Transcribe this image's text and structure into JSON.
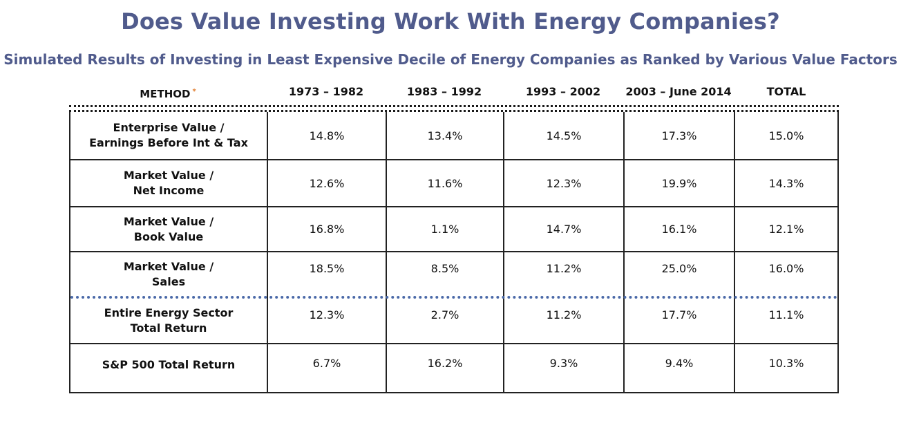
{
  "title": "Does Value Investing Work With Energy Companies?",
  "subtitle": "Simulated Results of Investing in Least Expensive Decile of Energy Companies as Ranked by Various Value Factors",
  "header": {
    "method": "METHOD",
    "asterisk": "*",
    "periods": [
      "1973 – 1982",
      "1983 – 1992",
      "1993 – 2002",
      "2003 – June 2014",
      "TOTAL"
    ]
  },
  "rows": [
    {
      "method_line1": "Enterprise Value /",
      "method_line2": "Earnings Before Int & Tax",
      "values": [
        "14.8%",
        "13.4%",
        "14.5%",
        "17.3%",
        "15.0%"
      ]
    },
    {
      "method_line1": "Market Value /",
      "method_line2": "Net Income",
      "values": [
        "12.6%",
        "11.6%",
        "12.3%",
        "19.9%",
        "14.3%"
      ]
    },
    {
      "method_line1": "Market Value /",
      "method_line2": "Book Value",
      "values": [
        "16.8%",
        "1.1%",
        "14.7%",
        "16.1%",
        "12.1%"
      ]
    },
    {
      "method_line1": "Market Value /",
      "method_line2": "Sales",
      "values": [
        "18.5%",
        "8.5%",
        "11.2%",
        "25.0%",
        "16.0%"
      ]
    },
    {
      "method_line1": "Entire Energy Sector",
      "method_line2": "Total Return",
      "values": [
        "12.3%",
        "2.7%",
        "11.2%",
        "17.7%",
        "11.1%"
      ]
    },
    {
      "method_line1": "S&P 500 Total Return",
      "method_line2": "",
      "values": [
        "6.7%",
        "16.2%",
        "9.3%",
        "9.4%",
        "10.3%"
      ]
    }
  ],
  "colors": {
    "title": "#505b8c",
    "asterisk": "#e07a2a",
    "divider": "#4a69a8"
  }
}
